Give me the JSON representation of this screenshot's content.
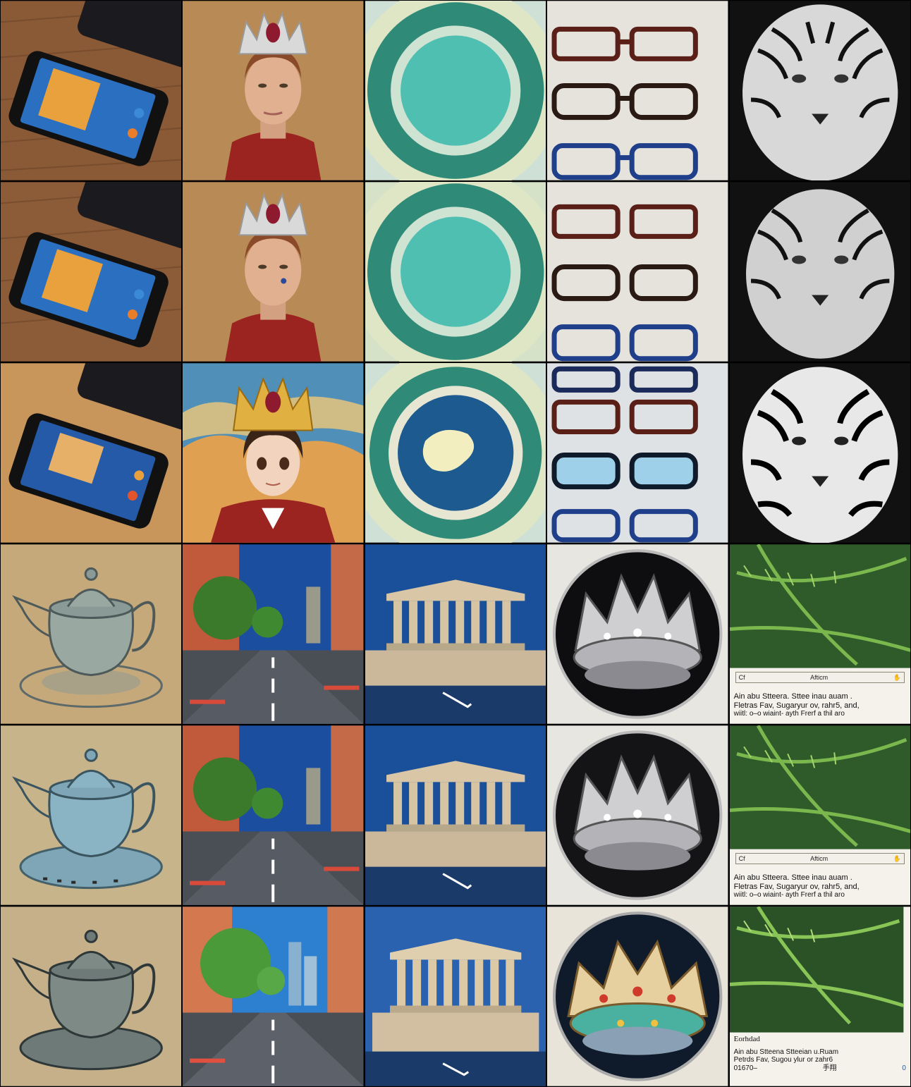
{
  "grid": {
    "rows": 6,
    "cols": 5,
    "tiles": [
      {
        "subject": "smartphone-on-wood",
        "variant": "reference"
      },
      {
        "subject": "woman-with-crown",
        "variant": "reference"
      },
      {
        "subject": "teal-concentric-circles",
        "variant": "reference"
      },
      {
        "subject": "eyeglasses-rows",
        "variant": "reference"
      },
      {
        "subject": "white-tiger",
        "variant": "reference"
      },
      {
        "subject": "smartphone-on-wood",
        "variant": "artifacts"
      },
      {
        "subject": "woman-with-crown",
        "variant": "artifacts"
      },
      {
        "subject": "teal-concentric-circles",
        "variant": "artifacts"
      },
      {
        "subject": "eyeglasses-rows",
        "variant": "artifacts"
      },
      {
        "subject": "white-tiger",
        "variant": "artifacts"
      },
      {
        "subject": "smartphone-on-wood",
        "variant": "stylized"
      },
      {
        "subject": "anime-with-crown",
        "variant": "stylized"
      },
      {
        "subject": "teal-circle-earth",
        "variant": "stylized"
      },
      {
        "subject": "eyeglasses-rows",
        "variant": "stylized"
      },
      {
        "subject": "white-tiger",
        "variant": "stylized"
      },
      {
        "subject": "teapot-sketch",
        "variant": "reference"
      },
      {
        "subject": "city-street",
        "variant": "reference"
      },
      {
        "subject": "parthenon",
        "variant": "reference"
      },
      {
        "subject": "silver-crown",
        "variant": "reference"
      },
      {
        "subject": "fern-card",
        "variant": "reference"
      },
      {
        "subject": "teapot-sketch",
        "variant": "artifacts"
      },
      {
        "subject": "city-street",
        "variant": "artifacts"
      },
      {
        "subject": "parthenon",
        "variant": "artifacts"
      },
      {
        "subject": "silver-crown",
        "variant": "artifacts"
      },
      {
        "subject": "fern-card",
        "variant": "artifacts"
      },
      {
        "subject": "teapot-sketch",
        "variant": "stylized"
      },
      {
        "subject": "city-street",
        "variant": "stylized"
      },
      {
        "subject": "parthenon",
        "variant": "stylized"
      },
      {
        "subject": "jeweled-crown",
        "variant": "stylized"
      },
      {
        "subject": "fern-card",
        "variant": "stylized"
      }
    ]
  },
  "fern_card_1": {
    "header_left": "Cf",
    "header_center": "Afticm",
    "line1": "Ain abu Stteera. Sttee inau auam .",
    "line2": "Fletras Fav, Sugaryur ov, rahr5, and,",
    "line3": "wiitl: o–o wiaint- ayth Frerf a thil aro"
  },
  "fern_card_2": {
    "header_left": "Cf",
    "header_center": "Afticm",
    "line1": "Ain abu Stteera. Sttee inau auam .",
    "line2": "Fletras Fav, Sugaryur ov, rahr5, and,",
    "line3": "wiitl: o–o wiaint- ayth Frerf a thil aro"
  },
  "fern_card_3": {
    "title": "Eorhdad",
    "line1": "Ain abu Stteena  Stteeian u.Ruam",
    "line2": "Petrds Fav, Sugou ylur or zahr6",
    "line3": "01670–",
    "mark": "手翔",
    "corner": "0"
  },
  "colors": {
    "wood": "#8a5a36",
    "teal": "#2f8a78",
    "teal_light": "#4fbfb2",
    "cream": "#dfe6c6",
    "mustard": "#c8955a",
    "tan": "#c6a97a",
    "sky": "#2c5da8"
  }
}
